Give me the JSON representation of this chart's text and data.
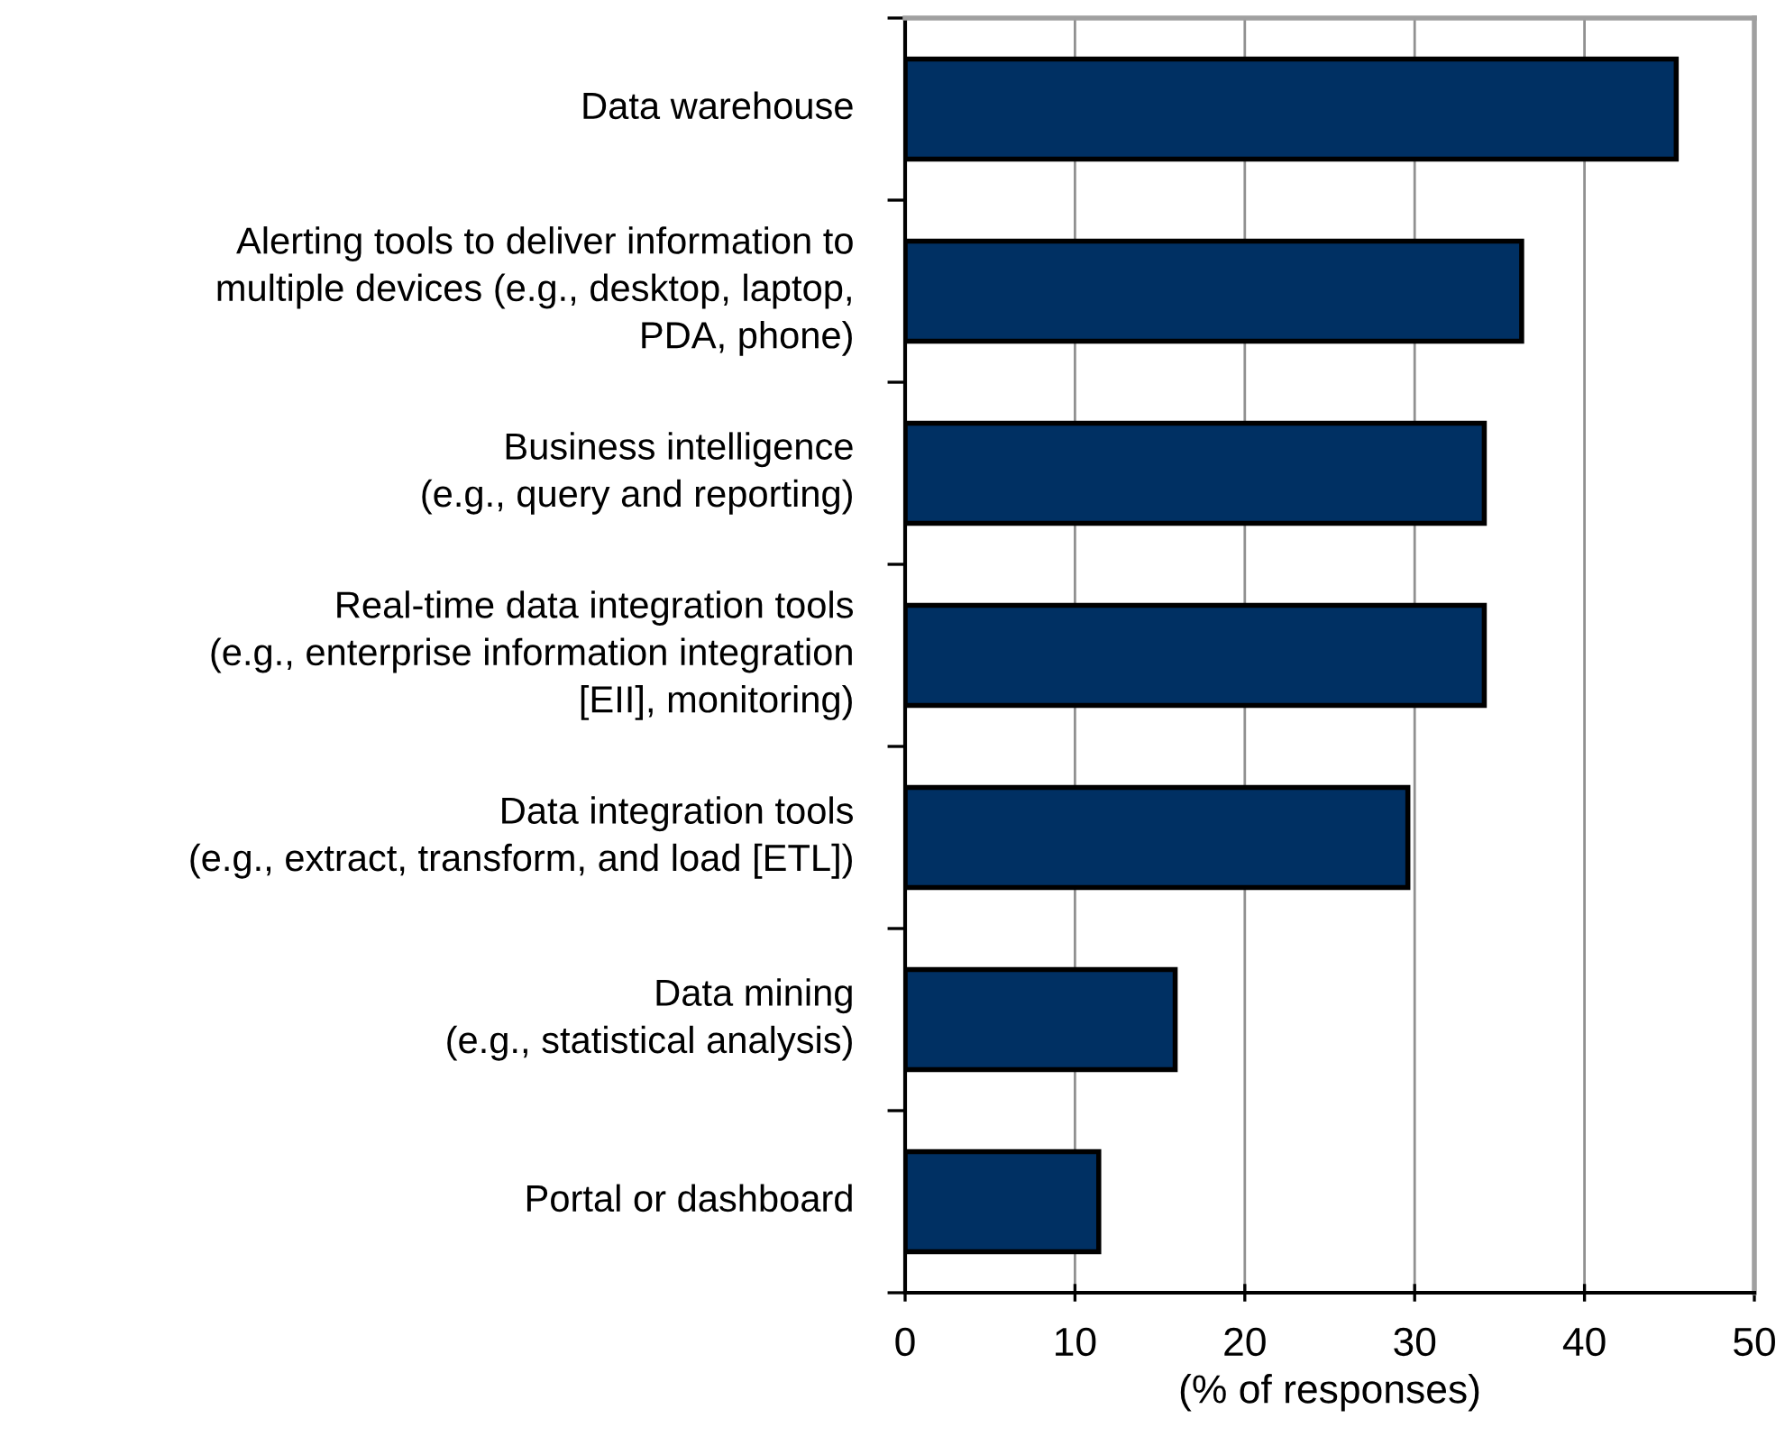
{
  "chart_data": {
    "type": "bar",
    "orientation": "horizontal",
    "xlabel": "(% of responses)",
    "categories": [
      "Data warehouse",
      "Alerting tools to deliver information to\nmultiple devices (e.g., desktop, laptop,\nPDA, phone)",
      "Business intelligence\n(e.g., query and reporting)",
      "Real-time data integration tools\n(e.g., enterprise information integration\n[EII], monitoring)",
      "Data integration tools\n(e.g., extract, transform, and load [ETL])",
      "Data mining\n(e.g., statistical analysis)",
      "Portal or dashboard"
    ],
    "values": [
      45.4,
      36.3,
      34.1,
      34.1,
      29.6,
      15.9,
      11.4
    ],
    "color": "#003063",
    "xlim": [
      0,
      50
    ],
    "xticks": [
      0,
      10,
      20,
      30,
      40,
      50
    ],
    "grid": "x",
    "legend": false
  }
}
